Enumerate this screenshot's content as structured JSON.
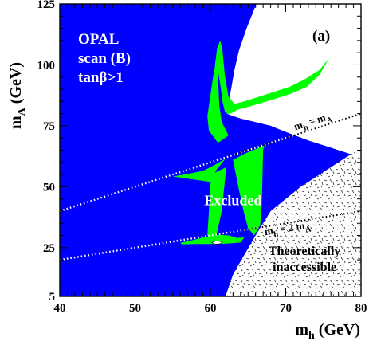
{
  "chart_data": {
    "type": "area",
    "experiment_label": "OPAL",
    "scan_label": "scan (B)",
    "condition_label": "tanβ>1",
    "panel_label": "(a)",
    "xlabel": {
      "main": "m",
      "sub": "h",
      "unit": " (GeV)"
    },
    "ylabel": {
      "main": "m",
      "sub": "A",
      "unit": " (GeV)"
    },
    "xlim": [
      40,
      80
    ],
    "ylim": [
      5,
      125
    ],
    "x_ticks": [
      40,
      50,
      60,
      70,
      80
    ],
    "y_ticks": [
      5,
      25,
      50,
      75,
      100,
      125
    ],
    "grid": false,
    "regions": [
      {
        "name": "excluded",
        "color": "#0000ff",
        "label": "Excluded",
        "label_at": [
          63,
          42.5
        ]
      },
      {
        "name": "allowed",
        "color": "#ffffff"
      },
      {
        "name": "band",
        "color": "#00ff00"
      },
      {
        "name": "theoretically_inaccessible",
        "color": "#ffffff",
        "label_lines": [
          "Theoretically",
          "inaccessible"
        ],
        "label_at": [
          72.5,
          22
        ]
      }
    ],
    "boundaries": {
      "allowed_upper": [
        [
          66.1,
          125
        ],
        [
          64.8,
          115
        ],
        [
          63.8,
          106
        ],
        [
          63.2,
          98
        ],
        [
          62.8,
          91
        ],
        [
          62.5,
          86
        ],
        [
          62.2,
          80
        ],
        [
          62.6,
          79.5
        ],
        [
          64,
          78
        ],
        [
          66,
          76.5
        ],
        [
          68,
          75
        ],
        [
          70,
          72.5
        ],
        [
          73,
          69
        ],
        [
          76,
          66
        ],
        [
          80,
          62
        ]
      ],
      "mh_eq_mA_line": [
        [
          40,
          40
        ],
        [
          80,
          80
        ]
      ],
      "mh_eq_2mA_line": [
        [
          40,
          20
        ],
        [
          80,
          40
        ]
      ],
      "inaccessible_boundary": [
        [
          62,
          5
        ],
        [
          63,
          14
        ],
        [
          64.5,
          22
        ],
        [
          66,
          30
        ],
        [
          68,
          40
        ],
        [
          72,
          50
        ],
        [
          76,
          58
        ],
        [
          80,
          66
        ]
      ]
    },
    "line_labels": [
      {
        "label": {
          "main": "m",
          "sub1": "h",
          "mid": " = m",
          "sub2": "A"
        },
        "at": [
          73.7,
          75.6
        ]
      },
      {
        "label": {
          "main": "m",
          "sub1": "h",
          "mid": " = 2 m",
          "sub2": "A"
        },
        "at": [
          70.3,
          31.6
        ]
      }
    ]
  }
}
